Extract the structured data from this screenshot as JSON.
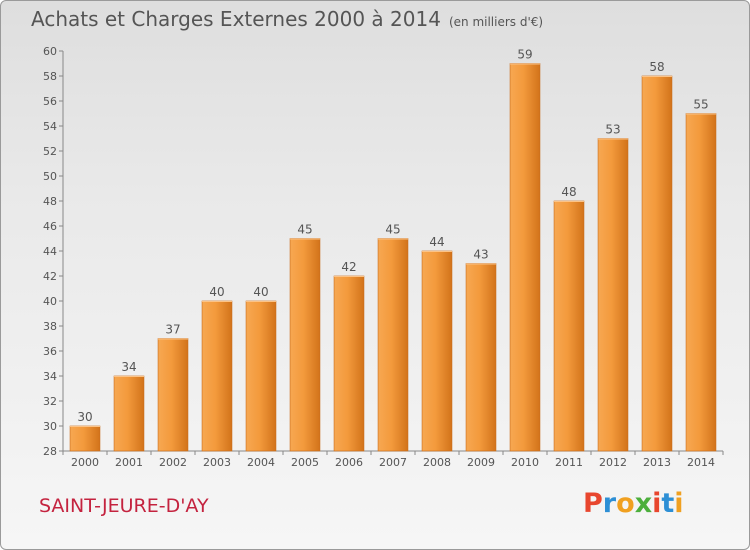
{
  "header": {
    "title": "Achats et Charges Externes 2000 à 2014",
    "unit": "(en milliers d'€)"
  },
  "footer": {
    "commune": "SAINT-JEURE-D'AY",
    "logo_text": "Proxiti",
    "logo_colors": [
      "#e8462e",
      "#2d8fd5",
      "#f0a020",
      "#4caf3c",
      "#e8462e",
      "#2d8fd5",
      "#f0a020"
    ]
  },
  "chart_data": {
    "type": "bar",
    "title": "Achats et Charges Externes 2000 à 2014",
    "categories": [
      "2000",
      "2001",
      "2002",
      "2003",
      "2004",
      "2005",
      "2006",
      "2007",
      "2008",
      "2009",
      "2010",
      "2011",
      "2012",
      "2013",
      "2014"
    ],
    "values": [
      30,
      34,
      37,
      40,
      40,
      45,
      42,
      45,
      44,
      43,
      59,
      48,
      53,
      58,
      55
    ],
    "ylim": [
      28,
      60
    ],
    "yticks": [
      28,
      30,
      32,
      34,
      36,
      38,
      40,
      42,
      44,
      46,
      48,
      50,
      52,
      54,
      56,
      58,
      60
    ],
    "grid": false,
    "bar_color": "#f0922e",
    "xlabel": "",
    "ylabel": ""
  }
}
